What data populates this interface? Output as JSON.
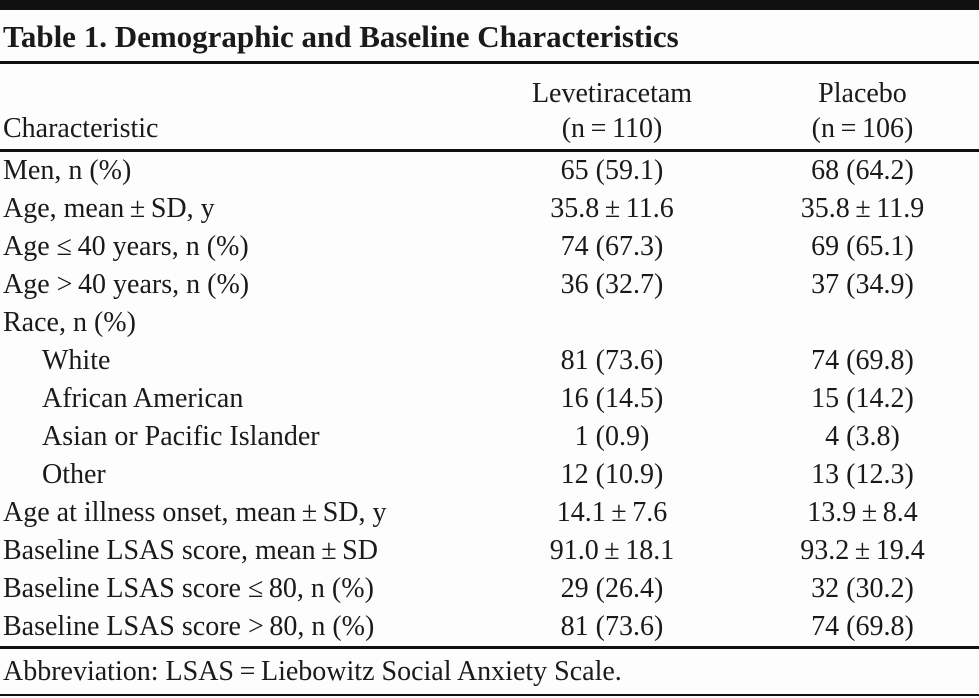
{
  "table": {
    "title": "Table 1. Demographic and Baseline Characteristics",
    "columns": {
      "characteristic": "Characteristic",
      "group1_name": "Levetiracetam",
      "group1_n": "(n = 110)",
      "group2_name": "Placebo",
      "group2_n": "(n = 106)"
    },
    "rows": [
      {
        "label": "Men, n (%)",
        "levetiracetam": "65 (59.1)",
        "placebo": "68 (64.2)"
      },
      {
        "label": "Age, mean ± SD, y",
        "levetiracetam": "35.8 ± 11.6",
        "placebo": "35.8 ± 11.9"
      },
      {
        "label": "Age ≤ 40 years, n (%)",
        "levetiracetam": "74 (67.3)",
        "placebo": "69 (65.1)"
      },
      {
        "label": "Age > 40 years, n (%)",
        "levetiracetam": "36 (32.7)",
        "placebo": "37 (34.9)"
      },
      {
        "label": "Race, n (%)",
        "levetiracetam": "",
        "placebo": ""
      },
      {
        "label": "White",
        "levetiracetam": "81 (73.6)",
        "placebo": "74 (69.8)"
      },
      {
        "label": "African American",
        "levetiracetam": "16 (14.5)",
        "placebo": "15 (14.2)"
      },
      {
        "label": "Asian or Pacific Islander",
        "levetiracetam": "1 (0.9)",
        "placebo": "4 (3.8)"
      },
      {
        "label": "Other",
        "levetiracetam": "12 (10.9)",
        "placebo": "13 (12.3)"
      },
      {
        "label": "Age at illness onset, mean ± SD, y",
        "levetiracetam": "14.1 ± 7.6",
        "placebo": "13.9 ± 8.4"
      },
      {
        "label": "Baseline LSAS score, mean ± SD",
        "levetiracetam": "91.0 ± 18.1",
        "placebo": "93.2 ± 19.4"
      },
      {
        "label": "Baseline LSAS score ≤ 80, n (%)",
        "levetiracetam": "29 (26.4)",
        "placebo": "32 (30.2)"
      },
      {
        "label": "Baseline LSAS score > 80, n (%)",
        "levetiracetam": "81 (73.6)",
        "placebo": "74 (69.8)"
      }
    ],
    "footnote": "Abbreviation: LSAS = Liebowitz Social Anxiety Scale."
  }
}
